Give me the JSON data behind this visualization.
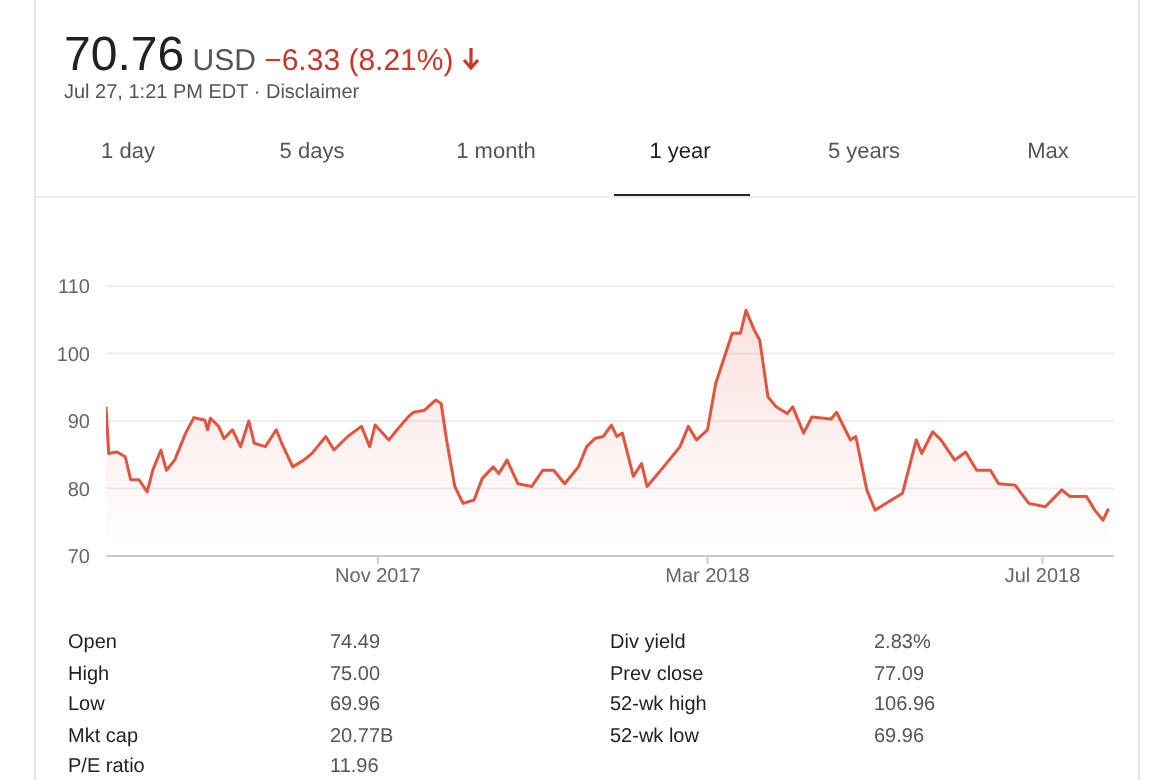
{
  "chart_data": {
    "type": "area",
    "title": "70.76 USD −6.33 (8.21%)",
    "subtitle": "Jul 27, 1:21 PM EDT · Disclaimer",
    "annotations": [
      "1 day",
      "5 days",
      "1 month",
      "1 year",
      "5 years",
      "Max",
      "Open",
      "74.49",
      "Div yield",
      "2.83%",
      "High",
      "75.00",
      "Prev close",
      "77.09",
      "Low",
      "69.96",
      "52-wk high",
      "106.96",
      "Mkt cap",
      "20.77B",
      "52-wk low",
      "69.96",
      "P/E ratio",
      "11.96"
    ],
    "xlim": [
      "2017-07-25",
      "2018-07-27"
    ],
    "xticks": [
      {
        "value": "2017-11-01",
        "label": "Nov 2017"
      },
      {
        "value": "2018-03-01",
        "label": "Mar 2018"
      },
      {
        "value": "2018-07-01",
        "label": "Jul 2018"
      }
    ],
    "ylim": [
      70,
      110
    ],
    "yticks": [
      70,
      80,
      90,
      100,
      110
    ],
    "grid": "y",
    "x": [
      "2017-07-25",
      "2017-07-26",
      "2017-07-29",
      "2017-08-01",
      "2017-08-03",
      "2017-08-06",
      "2017-08-09",
      "2017-08-11",
      "2017-08-14",
      "2017-08-16",
      "2017-08-19",
      "2017-08-23",
      "2017-08-26",
      "2017-08-30",
      "2017-08-31",
      "2017-09-01",
      "2017-09-04",
      "2017-09-06",
      "2017-09-09",
      "2017-09-12",
      "2017-09-15",
      "2017-09-17",
      "2017-09-21",
      "2017-09-25",
      "2017-09-27",
      "2017-10-01",
      "2017-10-05",
      "2017-10-08",
      "2017-10-13",
      "2017-10-16",
      "2017-10-21",
      "2017-10-26",
      "2017-10-29",
      "2017-10-31",
      "2017-11-05",
      "2017-11-08",
      "2017-11-12",
      "2017-11-14",
      "2017-11-18",
      "2017-11-22",
      "2017-11-24",
      "2017-11-26",
      "2017-11-29",
      "2017-12-02",
      "2017-12-06",
      "2017-12-09",
      "2017-12-13",
      "2017-12-15",
      "2017-12-18",
      "2017-12-22",
      "2017-12-27",
      "2017-12-31",
      "2018-01-04",
      "2018-01-08",
      "2018-01-13",
      "2018-01-16",
      "2018-01-19",
      "2018-01-22",
      "2018-01-25",
      "2018-01-27",
      "2018-01-29",
      "2018-02-02",
      "2018-02-05",
      "2018-02-07",
      "2018-02-13",
      "2018-02-19",
      "2018-02-22",
      "2018-02-25",
      "2018-03-01",
      "2018-03-04",
      "2018-03-10",
      "2018-03-13",
      "2018-03-15",
      "2018-03-18",
      "2018-03-20",
      "2018-03-23",
      "2018-03-26",
      "2018-03-30",
      "2018-04-01",
      "2018-04-05",
      "2018-04-08",
      "2018-04-15",
      "2018-04-17",
      "2018-04-22",
      "2018-04-24",
      "2018-04-28",
      "2018-05-01",
      "2018-05-07",
      "2018-05-11",
      "2018-05-16",
      "2018-05-18",
      "2018-05-22",
      "2018-05-25",
      "2018-05-30",
      "2018-06-03",
      "2018-06-07",
      "2018-06-12",
      "2018-06-15",
      "2018-06-21",
      "2018-06-26",
      "2018-07-02",
      "2018-07-08",
      "2018-07-11",
      "2018-07-17",
      "2018-07-20",
      "2018-07-23",
      "2018-07-25"
    ],
    "series": [
      {
        "color": "#e2543f",
        "values": [
          92.1,
          85.2,
          85.4,
          84.7,
          81.3,
          81.3,
          79.5,
          82.7,
          85.7,
          82.7,
          84.2,
          88.2,
          90.5,
          90.1,
          88.7,
          90.4,
          89.2,
          87.4,
          88.7,
          86.2,
          90.0,
          86.7,
          86.2,
          88.7,
          86.7,
          83.2,
          84.2,
          85.2,
          87.7,
          85.7,
          87.7,
          89.2,
          86.2,
          89.4,
          87.2,
          88.7,
          90.6,
          91.3,
          91.6,
          93.1,
          92.6,
          87.2,
          80.3,
          77.8,
          78.3,
          81.5,
          83.2,
          82.2,
          84.2,
          80.7,
          80.3,
          82.7,
          82.7,
          80.7,
          83.2,
          86.2,
          87.4,
          87.7,
          89.4,
          87.7,
          88.2,
          81.8,
          83.7,
          80.3,
          83.2,
          86.2,
          89.2,
          87.2,
          88.7,
          95.6,
          103.0,
          103.0,
          106.4,
          103.5,
          102.0,
          93.6,
          92.1,
          91.1,
          92.1,
          88.2,
          90.6,
          90.3,
          91.3,
          87.2,
          87.7,
          79.8,
          76.8,
          78.3,
          79.3,
          87.2,
          85.2,
          88.4,
          87.2,
          84.2,
          85.4,
          82.7,
          82.7,
          80.7,
          80.5,
          77.8,
          77.3,
          79.8,
          78.8,
          78.8,
          76.8,
          75.3,
          77.0
        ]
      }
    ]
  }
}
